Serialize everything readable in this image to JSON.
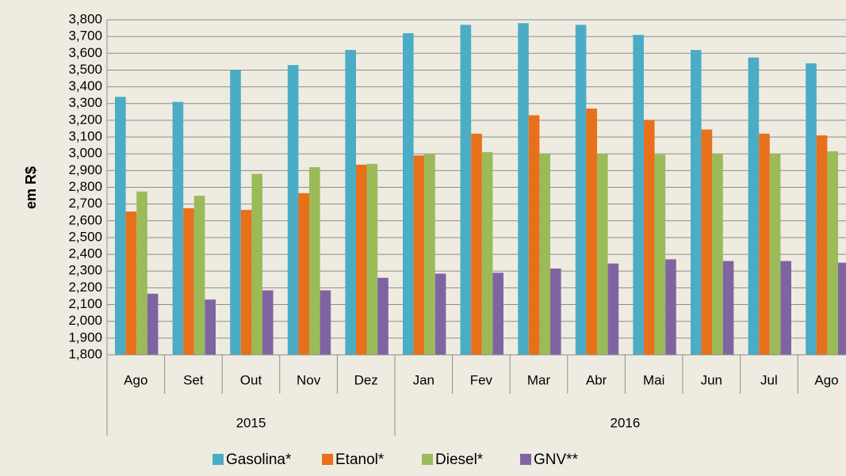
{
  "chart_data": {
    "type": "bar",
    "y_label": "em R$",
    "groups": [
      {
        "label": "2015",
        "categories": [
          "Ago",
          "Set",
          "Out",
          "Nov",
          "Dez"
        ]
      },
      {
        "label": "2016",
        "categories": [
          "Jan",
          "Fev",
          "Mar",
          "Abr",
          "Mai",
          "Jun",
          "Jul",
          "Ago"
        ]
      }
    ],
    "series": [
      {
        "name": "Gasolina*",
        "color": "#4bacc6",
        "values": [
          3.34,
          3.31,
          3.5,
          3.53,
          3.62,
          3.72,
          3.77,
          3.78,
          3.77,
          3.71,
          3.62,
          3.575,
          3.54
        ]
      },
      {
        "name": "Etanol*",
        "color": "#e8701a",
        "values": [
          2.655,
          2.675,
          2.665,
          2.765,
          2.935,
          2.99,
          3.12,
          3.23,
          3.27,
          3.2,
          3.145,
          3.12,
          3.11
        ]
      },
      {
        "name": "Diesel*",
        "color": "#9bbb59",
        "values": [
          2.775,
          2.75,
          2.88,
          2.92,
          2.94,
          3.0,
          3.01,
          3.0,
          3.0,
          2.995,
          3.0,
          3.0,
          3.015
        ]
      },
      {
        "name": "GNV**",
        "color": "#8064a2",
        "values": [
          2.165,
          2.13,
          2.185,
          2.185,
          2.26,
          2.285,
          2.29,
          2.315,
          2.345,
          2.37,
          2.36,
          2.36,
          2.35
        ]
      }
    ],
    "ylim": [
      1.8,
      3.8
    ],
    "yticks": [
      {
        "value": 1.8,
        "label": "1,800"
      },
      {
        "value": 1.9,
        "label": "1,900"
      },
      {
        "value": 2.0,
        "label": "2,000"
      },
      {
        "value": 2.1,
        "label": "2,100"
      },
      {
        "value": 2.2,
        "label": "2,200"
      },
      {
        "value": 2.3,
        "label": "2,300"
      },
      {
        "value": 2.4,
        "label": "2,400"
      },
      {
        "value": 2.5,
        "label": "2,500"
      },
      {
        "value": 2.6,
        "label": "2,600"
      },
      {
        "value": 2.7,
        "label": "2,700"
      },
      {
        "value": 2.8,
        "label": "2,800"
      },
      {
        "value": 2.9,
        "label": "2,900"
      },
      {
        "value": 3.0,
        "label": "3,000"
      },
      {
        "value": 3.1,
        "label": "3,100"
      },
      {
        "value": 3.2,
        "label": "3,200"
      },
      {
        "value": 3.3,
        "label": "3,300"
      },
      {
        "value": 3.4,
        "label": "3,400"
      },
      {
        "value": 3.5,
        "label": "3,500"
      },
      {
        "value": 3.6,
        "label": "3,600"
      },
      {
        "value": 3.7,
        "label": "3,700"
      },
      {
        "value": 3.8,
        "label": "3,800"
      }
    ],
    "grid": true,
    "legend": "bottom"
  }
}
